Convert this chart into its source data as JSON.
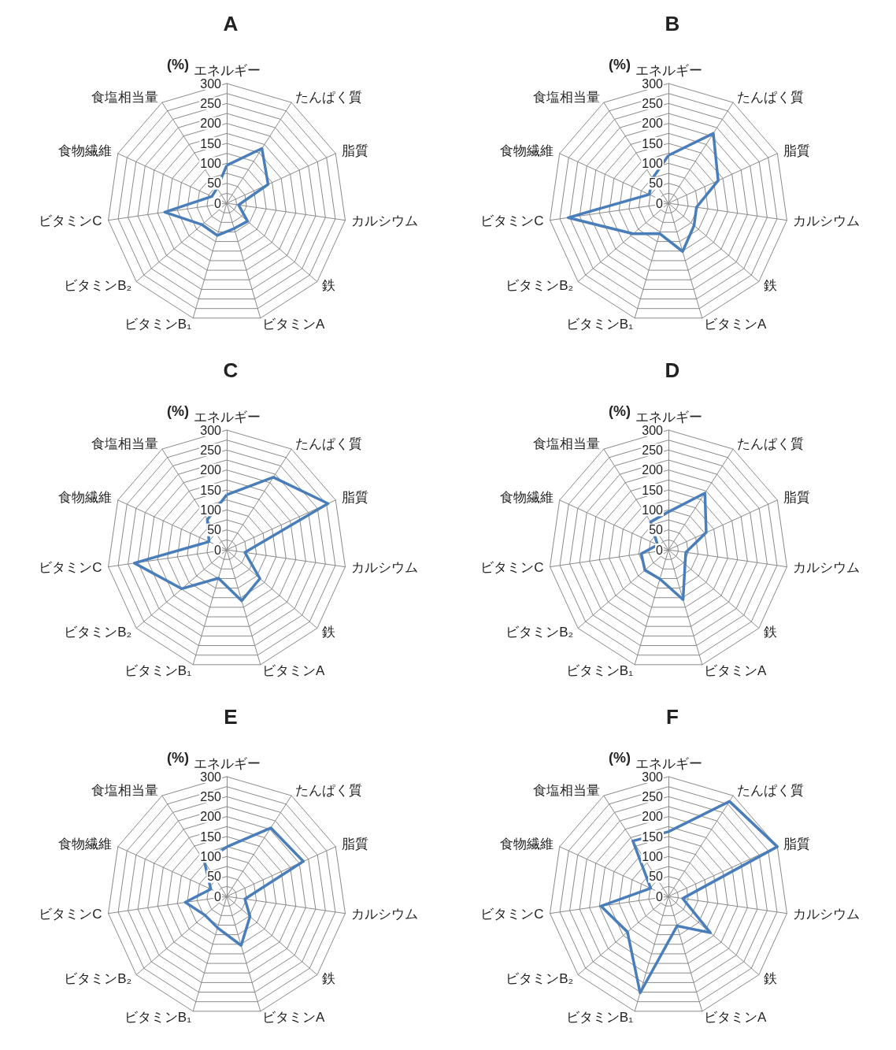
{
  "chart_data": [
    {
      "type": "radar",
      "title": "A",
      "ylabel": "(%)",
      "categories": [
        "エネルギー",
        "たんぱく質",
        "脂質",
        "カルシウム",
        "鉄",
        "ビタミンA",
        "ビタミンB₁",
        "ビタミンB₂",
        "ビタミンC",
        "食物繊維",
        "食塩相当量"
      ],
      "ylim": [
        0,
        300
      ],
      "yticks": [
        0,
        50,
        100,
        150,
        200,
        250,
        300
      ],
      "grid": true,
      "marker": "none",
      "line_style": "solid",
      "series": [
        {
          "color": "#4a7ebb",
          "values": [
            95,
            163,
            114,
            30,
            69,
            66,
            84,
            82,
            157,
            41,
            45
          ]
        }
      ]
    },
    {
      "type": "radar",
      "title": "B",
      "ylabel": "(%)",
      "categories": [
        "エネルギー",
        "たんぱく質",
        "脂質",
        "カルシウム",
        "鉄",
        "ビタミンA",
        "ビタミンB₁",
        "ビタミンB₂",
        "ビタミンC",
        "食物繊維",
        "食塩相当量"
      ],
      "ylim": [
        0,
        300
      ],
      "yticks": [
        0,
        50,
        100,
        150,
        200,
        250,
        300
      ],
      "grid": true,
      "marker": "none",
      "line_style": "solid",
      "series": [
        {
          "color": "#4a7ebb",
          "values": [
            120,
            208,
            137,
            71,
            85,
            126,
            79,
            117,
            254,
            53,
            74
          ]
        }
      ]
    },
    {
      "type": "radar",
      "title": "C",
      "ylabel": "(%)",
      "categories": [
        "エネルギー",
        "たんぱく質",
        "脂質",
        "カルシウム",
        "鉄",
        "ビタミンA",
        "ビタミンB₁",
        "ビタミンB₂",
        "ビタミンC",
        "食物繊維",
        "食塩相当量"
      ],
      "ylim": [
        0,
        300
      ],
      "yticks": [
        0,
        50,
        100,
        150,
        200,
        250,
        300
      ],
      "grid": true,
      "marker": "none",
      "line_style": "solid",
      "series": [
        {
          "color": "#4a7ebb",
          "values": [
            138,
            216,
            279,
            46,
            110,
            133,
            74,
            149,
            234,
            49,
            90
          ]
        }
      ]
    },
    {
      "type": "radar",
      "title": "D",
      "ylabel": "(%)",
      "categories": [
        "エネルギー",
        "たんぱく質",
        "脂質",
        "カルシウム",
        "鉄",
        "ビタミンA",
        "ビタミンB₁",
        "ビタミンB₂",
        "ビタミンC",
        "食物繊維",
        "食塩相当量"
      ],
      "ylim": [
        0,
        300
      ],
      "yticks": [
        0,
        50,
        100,
        150,
        200,
        250,
        300
      ],
      "grid": true,
      "marker": "none",
      "line_style": "solid",
      "series": [
        {
          "color": "#4a7ebb",
          "values": [
            95,
            169,
            104,
            44,
            55,
            130,
            76,
            78,
            69,
            30,
            83
          ]
        }
      ]
    },
    {
      "type": "radar",
      "title": "E",
      "ylabel": "(%)",
      "categories": [
        "エネルギー",
        "たんぱく質",
        "脂質",
        "カルシウム",
        "鉄",
        "ビタミンA",
        "ビタミンB₁",
        "ビタミンB₂",
        "ビタミンC",
        "食物繊維",
        "食塩相当量"
      ],
      "ylim": [
        0,
        300
      ],
      "yticks": [
        0,
        50,
        100,
        150,
        200,
        250,
        300
      ],
      "grid": true,
      "marker": "none",
      "line_style": "solid",
      "series": [
        {
          "color": "#4a7ebb",
          "values": [
            124,
            204,
            211,
            46,
            77,
            128,
            82,
            72,
            105,
            44,
            104
          ]
        }
      ]
    },
    {
      "type": "radar",
      "title": "F",
      "ylabel": "(%)",
      "categories": [
        "エネルギー",
        "たんぱく質",
        "脂質",
        "カルシウム",
        "鉄",
        "ビタミンA",
        "ビタミンB₁",
        "ビタミンB₂",
        "ビタミンC",
        "食物繊維",
        "食塩相当量"
      ],
      "ylim": [
        0,
        300
      ],
      "yticks": [
        0,
        50,
        100,
        150,
        200,
        250,
        300
      ],
      "grid": true,
      "marker": "none",
      "line_style": "solid",
      "series": [
        {
          "color": "#4a7ebb",
          "values": [
            162,
            283,
            300,
            36,
            139,
            77,
            252,
            136,
            171,
            49,
            165
          ]
        }
      ]
    }
  ]
}
